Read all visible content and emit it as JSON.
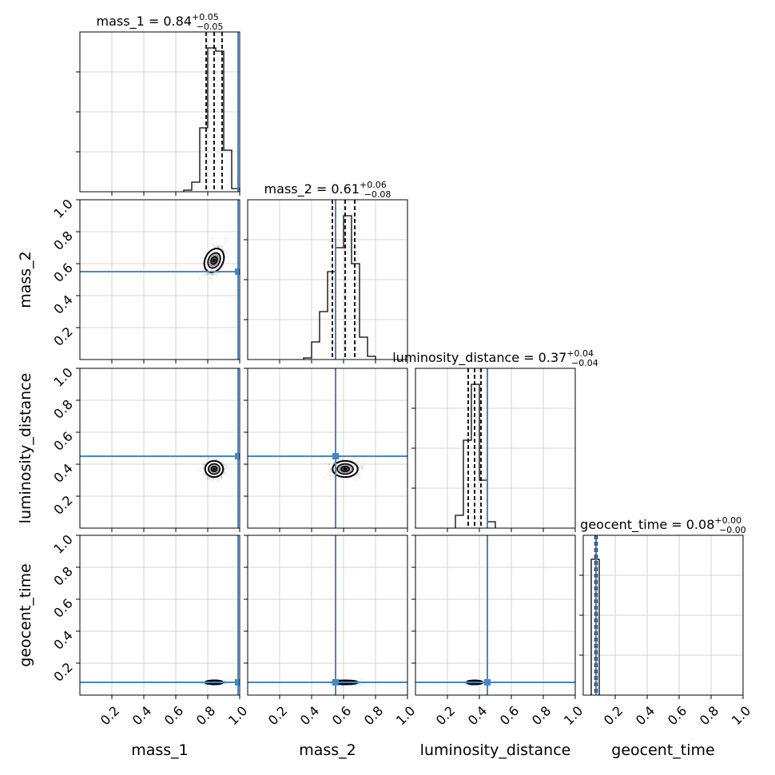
{
  "chart_data": {
    "type": "corner",
    "parameters": [
      "mass_1",
      "mass_2",
      "luminosity_distance",
      "geocent_time"
    ],
    "tick_values": [
      0.2,
      0.4,
      0.6,
      0.8,
      1.0
    ],
    "tick_labels": [
      "0.2",
      "0.4",
      "0.6",
      "0.8",
      "1.0"
    ],
    "axis_range": [
      0,
      1
    ],
    "grid": true,
    "colors": {
      "truth": "#4a86c0",
      "histogram": "#000000",
      "contour_fill": "#555555"
    },
    "truths": [
      0.99,
      0.55,
      0.45,
      0.08
    ],
    "marginals": [
      {
        "parameter": "mass_1",
        "title": "mass_1 = 0.84",
        "title_sup": "+0.05",
        "title_sub": "−0.05",
        "median": 0.84,
        "plus": 0.05,
        "minus": 0.05,
        "quantiles": [
          0.79,
          0.84,
          0.89
        ],
        "bin_edges": [
          0.65,
          0.7,
          0.75,
          0.8,
          0.85,
          0.9,
          0.95,
          1.0
        ],
        "counts": [
          0.01,
          0.06,
          0.4,
          0.9,
          0.88,
          0.26,
          0.02
        ]
      },
      {
        "parameter": "mass_2",
        "title": "mass_2 = 0.61",
        "title_sup": "+0.06",
        "title_sub": "−0.08",
        "median": 0.61,
        "plus": 0.06,
        "minus": 0.08,
        "quantiles": [
          0.53,
          0.61,
          0.67
        ],
        "bin_edges": [
          0.35,
          0.4,
          0.45,
          0.5,
          0.55,
          0.6,
          0.65,
          0.7,
          0.75,
          0.8
        ],
        "counts": [
          0.01,
          0.11,
          0.3,
          0.55,
          0.7,
          0.9,
          0.6,
          0.14,
          0.02
        ]
      },
      {
        "parameter": "luminosity_distance",
        "title": "luminosity_distance = 0.37",
        "title_sup": "+0.04",
        "title_sub": "−0.04",
        "median": 0.37,
        "plus": 0.04,
        "minus": 0.04,
        "quantiles": [
          0.33,
          0.37,
          0.41
        ],
        "bin_edges": [
          0.25,
          0.3,
          0.35,
          0.4,
          0.45,
          0.5
        ],
        "counts": [
          0.08,
          0.55,
          0.9,
          0.3,
          0.04
        ]
      },
      {
        "parameter": "geocent_time",
        "title": "geocent_time = 0.08",
        "title_sup": "+0.00",
        "title_sub": "−0.00",
        "median": 0.08,
        "plus": 0.0,
        "minus": 0.0,
        "quantiles": [
          0.075,
          0.08,
          0.085
        ],
        "bin_edges": [
          0.05,
          0.07,
          0.1
        ],
        "counts": [
          0.85,
          0.85
        ]
      }
    ],
    "joint": [
      {
        "x": "mass_1",
        "y": "mass_2",
        "center": [
          0.84,
          0.62
        ],
        "spread": [
          0.05,
          0.07
        ],
        "tilt": -0.5
      },
      {
        "x": "mass_1",
        "y": "luminosity_distance",
        "center": [
          0.84,
          0.37
        ],
        "spread": [
          0.05,
          0.045
        ],
        "tilt": 0
      },
      {
        "x": "mass_2",
        "y": "luminosity_distance",
        "center": [
          0.61,
          0.37
        ],
        "spread": [
          0.07,
          0.045
        ],
        "tilt": 0
      },
      {
        "x": "mass_1",
        "y": "geocent_time",
        "center": [
          0.84,
          0.08
        ],
        "spread": [
          0.05,
          0.004
        ],
        "tilt": 0
      },
      {
        "x": "mass_2",
        "y": "geocent_time",
        "center": [
          0.61,
          0.08
        ],
        "spread": [
          0.07,
          0.004
        ],
        "tilt": 0
      },
      {
        "x": "luminosity_distance",
        "y": "geocent_time",
        "center": [
          0.37,
          0.08
        ],
        "spread": [
          0.045,
          0.004
        ],
        "tilt": 0
      }
    ]
  }
}
